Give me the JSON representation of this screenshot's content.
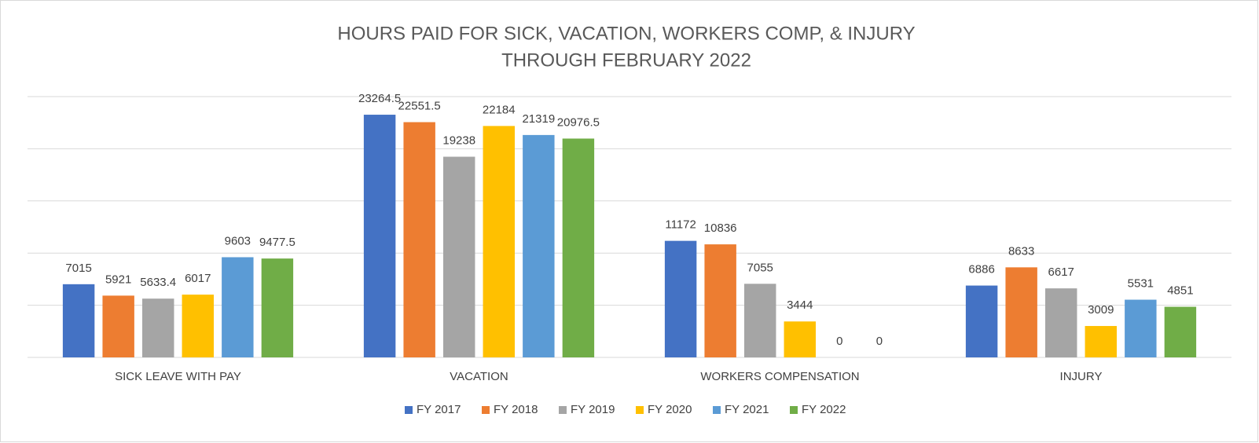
{
  "chart_data": {
    "type": "bar",
    "title": "HOURS PAID FOR SICK, VACATION, WORKERS COMP, & INJURY",
    "subtitle": "THROUGH FEBRUARY 2022",
    "categories": [
      "SICK LEAVE WITH PAY",
      "VACATION",
      "WORKERS COMPENSATION",
      "INJURY"
    ],
    "series": [
      {
        "name": "FY 2017",
        "color": "#4472c4",
        "values": [
          7015,
          23264.5,
          11172,
          6886
        ]
      },
      {
        "name": "FY 2018",
        "color": "#ed7d31",
        "values": [
          5921,
          22551.5,
          10836,
          8633
        ]
      },
      {
        "name": "FY 2019",
        "color": "#a5a5a5",
        "values": [
          5633.4,
          19238,
          7055,
          6617
        ]
      },
      {
        "name": "FY 2020",
        "color": "#ffc000",
        "values": [
          6017,
          22184,
          3444,
          3009
        ]
      },
      {
        "name": "FY 2021",
        "color": "#5b9bd5",
        "values": [
          9603,
          21319,
          0,
          5531
        ]
      },
      {
        "name": "FY 2022",
        "color": "#70ad47",
        "values": [
          9477.5,
          20976.5,
          0,
          4851
        ]
      }
    ],
    "ylim": [
      0,
      25000
    ],
    "yticks": [
      0,
      5000,
      10000,
      15000,
      20000,
      25000
    ],
    "grid": true,
    "legend": "bottom"
  }
}
